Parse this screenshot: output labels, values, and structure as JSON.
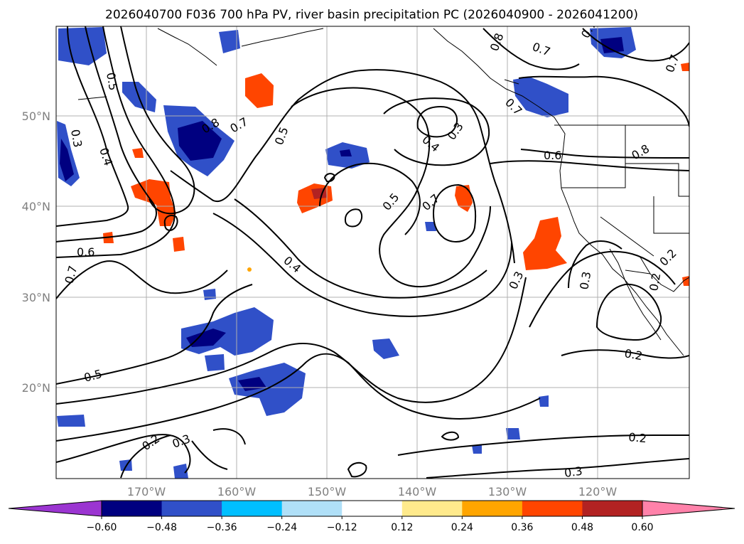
{
  "title": "2026040700 F036 700 hPa PV, river basin precipitation PC (2026040900 - 2026041200)",
  "map": {
    "lon_ticks": [
      "170°W",
      "160°W",
      "150°W",
      "140°W",
      "130°W",
      "120°W"
    ],
    "lat_ticks": [
      "50°N",
      "40°N",
      "30°N",
      "20°N"
    ],
    "contour_labels": [
      "0.5",
      "0.3",
      "0.4",
      "0.6",
      "0.7",
      "0.8",
      "0.7",
      "0.5",
      "0.4",
      "0.3",
      "0.5",
      "0.7",
      "0.8",
      "0.7",
      "0.7",
      "0.6",
      "0.4",
      "0.7",
      "0.3",
      "0.3",
      "0.2",
      "0.2",
      "0.2",
      "0.5",
      "0.2",
      "0.3",
      "0.2",
      "0.3",
      "0.8",
      "0.7"
    ],
    "colors": {
      "grid": "#b0b0b0",
      "contour": "#000000"
    }
  },
  "colorbar": {
    "colors": [
      "#9b35d1",
      "#000080",
      "#3050c8",
      "#00bfff",
      "#b0e0f8",
      "#ffffff",
      "#ffea8c",
      "#ffa500",
      "#ff4500",
      "#b22222",
      "#ff82aa"
    ],
    "ticks": [
      "−0.60",
      "−0.48",
      "−0.36",
      "−0.24",
      "−0.12",
      "0.12",
      "0.24",
      "0.36",
      "0.48",
      "0.60"
    ]
  }
}
